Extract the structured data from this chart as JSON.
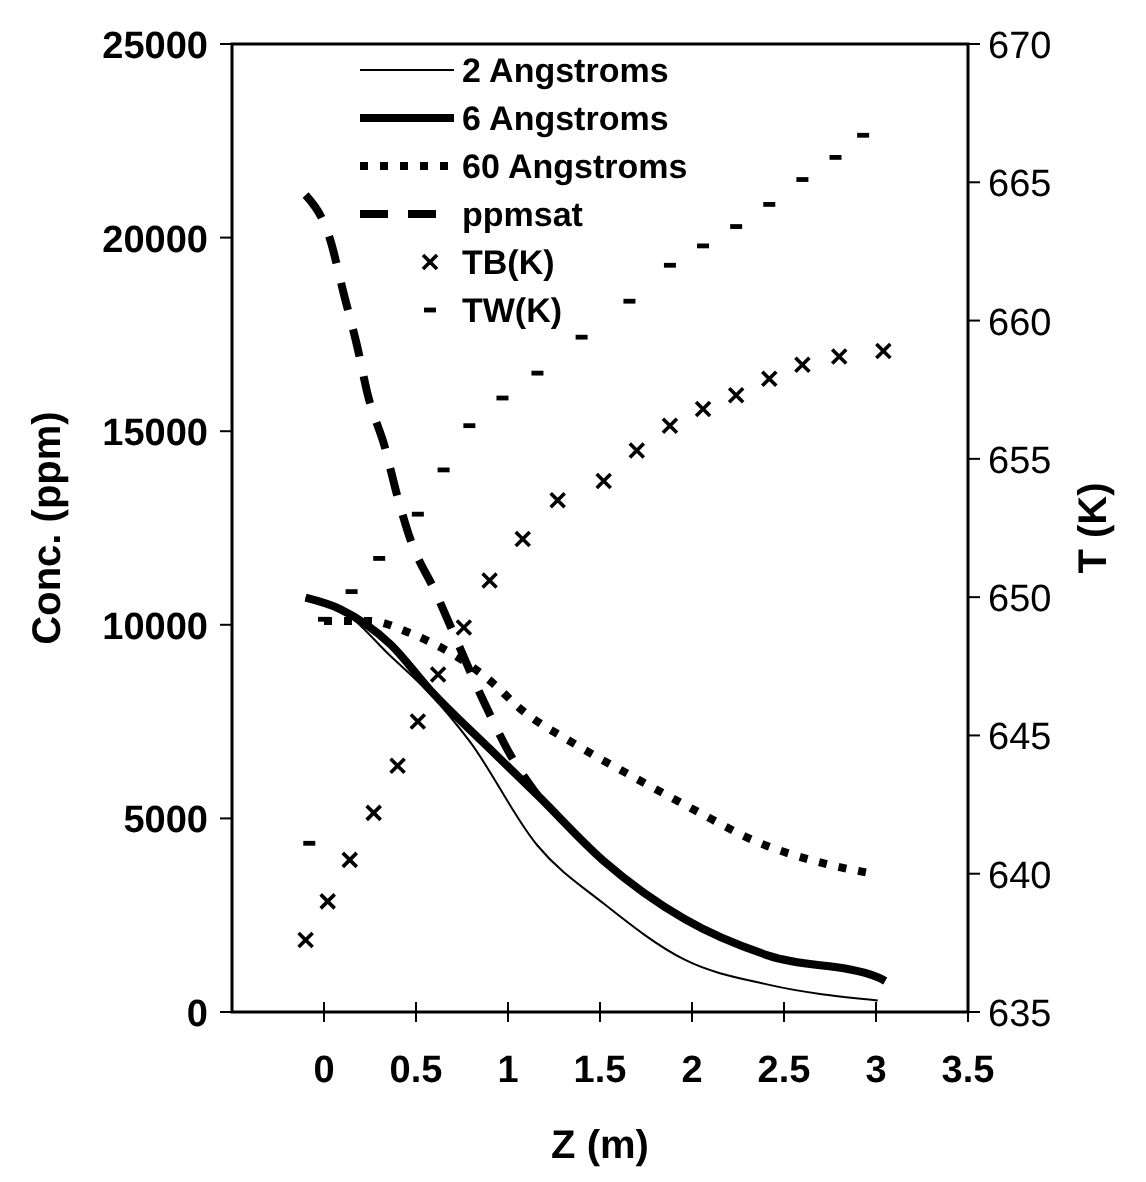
{
  "chart_data": {
    "type": "line",
    "xlabel": "Z (m)",
    "ylabel": "Conc. (ppm)",
    "y2label": "T (K)",
    "xlim": [
      -0.5,
      3.5
    ],
    "xticks": [
      0,
      0.5,
      1,
      1.5,
      2,
      2.5,
      3,
      3.5
    ],
    "ylim": [
      0,
      25000
    ],
    "yticks": [
      0,
      5000,
      10000,
      15000,
      20000,
      25000
    ],
    "y2lim": [
      635,
      670
    ],
    "y2ticks": [
      635,
      640,
      645,
      650,
      655,
      660,
      665,
      670
    ],
    "legend": "top",
    "grid": false,
    "series": [
      {
        "name": "2 Angstroms",
        "color": "#000000",
        "line_style": "solid",
        "x": [
          -0.1,
          0.09,
          0.36,
          0.58,
          0.79,
          1.16,
          1.52,
          1.96,
          2.42,
          3.01
        ],
        "values": [
          10700,
          10400,
          9200,
          8200,
          7000,
          4300,
          2800,
          1350,
          700,
          300
        ]
      },
      {
        "name": "6 Angstroms",
        "color": "#000000",
        "line_style": "solid",
        "x": [
          -0.1,
          0.09,
          0.36,
          0.58,
          0.9,
          1.16,
          1.52,
          1.96,
          2.42,
          3.01,
          3.05
        ],
        "values": [
          10700,
          10400,
          9500,
          8300,
          6800,
          5600,
          3900,
          2400,
          1450,
          900,
          800
        ]
      },
      {
        "name": "60 Angstroms",
        "color": "#000000",
        "line_style": "dotted",
        "x": [
          0,
          0.25,
          0.46,
          0.94,
          1.05,
          1.37,
          1.67,
          2.02,
          2.35,
          2.75,
          2.95
        ],
        "values": [
          10100,
          10100,
          9800,
          8400,
          7900,
          6900,
          6100,
          5200,
          4400,
          3800,
          3600
        ]
      },
      {
        "name": "ppmsat",
        "color": "#000000",
        "line_style": "dashed",
        "x": [
          -0.1,
          0.03,
          0.11,
          0.18,
          0.24,
          0.33,
          0.4,
          0.47,
          0.6,
          0.87,
          1.0,
          1.16
        ],
        "values": [
          21100,
          20000,
          18500,
          17200,
          15900,
          14600,
          13300,
          12200,
          10900,
          8000,
          6750,
          5600
        ]
      },
      {
        "name": "TB(K)",
        "color": "#000000",
        "type": "scatter",
        "marker": "cross",
        "axis": "y2",
        "x": [
          -0.1,
          0.02,
          0.14,
          0.27,
          0.4,
          0.51,
          0.62,
          0.76,
          0.9,
          1.08,
          1.27,
          1.52,
          1.7,
          1.88,
          2.06,
          2.24,
          2.42,
          2.6,
          2.8,
          3.04
        ],
        "values": [
          637.6,
          639.0,
          640.5,
          642.2,
          643.9,
          645.5,
          647.2,
          648.9,
          650.6,
          652.1,
          653.5,
          654.2,
          655.3,
          656.2,
          656.8,
          657.3,
          657.9,
          658.4,
          658.7,
          658.9
        ]
      },
      {
        "name": "TW(K)",
        "color": "#000000",
        "type": "scatter",
        "marker": "square",
        "axis": "y2",
        "x": [
          -0.08,
          0,
          0.15,
          0.3,
          0.51,
          0.65,
          0.79,
          0.97,
          1.16,
          1.4,
          1.66,
          1.88,
          2.06,
          2.24,
          2.42,
          2.6,
          2.78,
          2.93
        ],
        "values": [
          641.1,
          649.2,
          650.2,
          651.4,
          653.0,
          654.6,
          656.2,
          657.2,
          658.1,
          659.4,
          660.7,
          662.0,
          662.7,
          663.4,
          664.2,
          665.1,
          665.9,
          666.7
        ]
      }
    ]
  }
}
